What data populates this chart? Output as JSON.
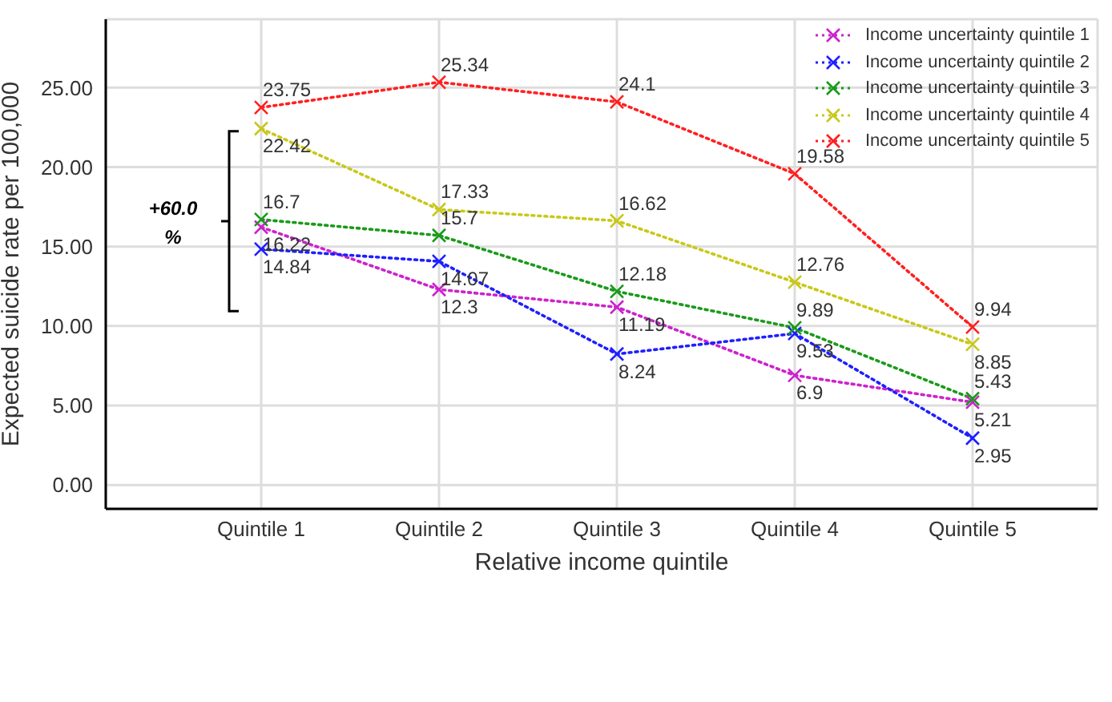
{
  "chart_data": {
    "type": "line",
    "xlabel": "Relative income quintile",
    "ylabel": "Expected suicide rate per 100,000",
    "categories": [
      "Quintile 1",
      "Quintile 2",
      "Quintile 3",
      "Quintile 4",
      "Quintile 5"
    ],
    "series": [
      {
        "name": "Income uncertainty quintile 1",
        "color": "#cc22cc",
        "values": [
          16.22,
          12.3,
          11.19,
          6.9,
          5.21
        ]
      },
      {
        "name": "Income uncertainty quintile 2",
        "color": "#1f1fff",
        "values": [
          14.84,
          14.07,
          8.24,
          9.53,
          2.95
        ]
      },
      {
        "name": "Income uncertainty quintile 3",
        "color": "#1a9a1a",
        "values": [
          16.7,
          15.7,
          12.18,
          9.89,
          5.43
        ]
      },
      {
        "name": "Income uncertainty quintile 4",
        "color": "#c8c81a",
        "values": [
          22.42,
          17.33,
          16.62,
          12.76,
          8.85
        ]
      },
      {
        "name": "Income uncertainty quintile 5",
        "color": "#ff2020",
        "values": [
          23.75,
          25.34,
          24.1,
          19.58,
          9.94
        ]
      }
    ],
    "ylim": [
      -1.5,
      29.3
    ],
    "yticks": [
      {
        "value": 0,
        "label": "0.00"
      },
      {
        "value": 5,
        "label": "5.00"
      },
      {
        "value": 10,
        "label": "10.00"
      },
      {
        "value": 15,
        "label": "15.00"
      },
      {
        "value": 20,
        "label": "20.00"
      },
      {
        "value": 25,
        "label": "25.00"
      }
    ],
    "grid": true,
    "legend": "top right",
    "marker": "cross",
    "line_style": "dotted",
    "data_labels": true,
    "annotations": [
      "+60.0 %"
    ]
  }
}
